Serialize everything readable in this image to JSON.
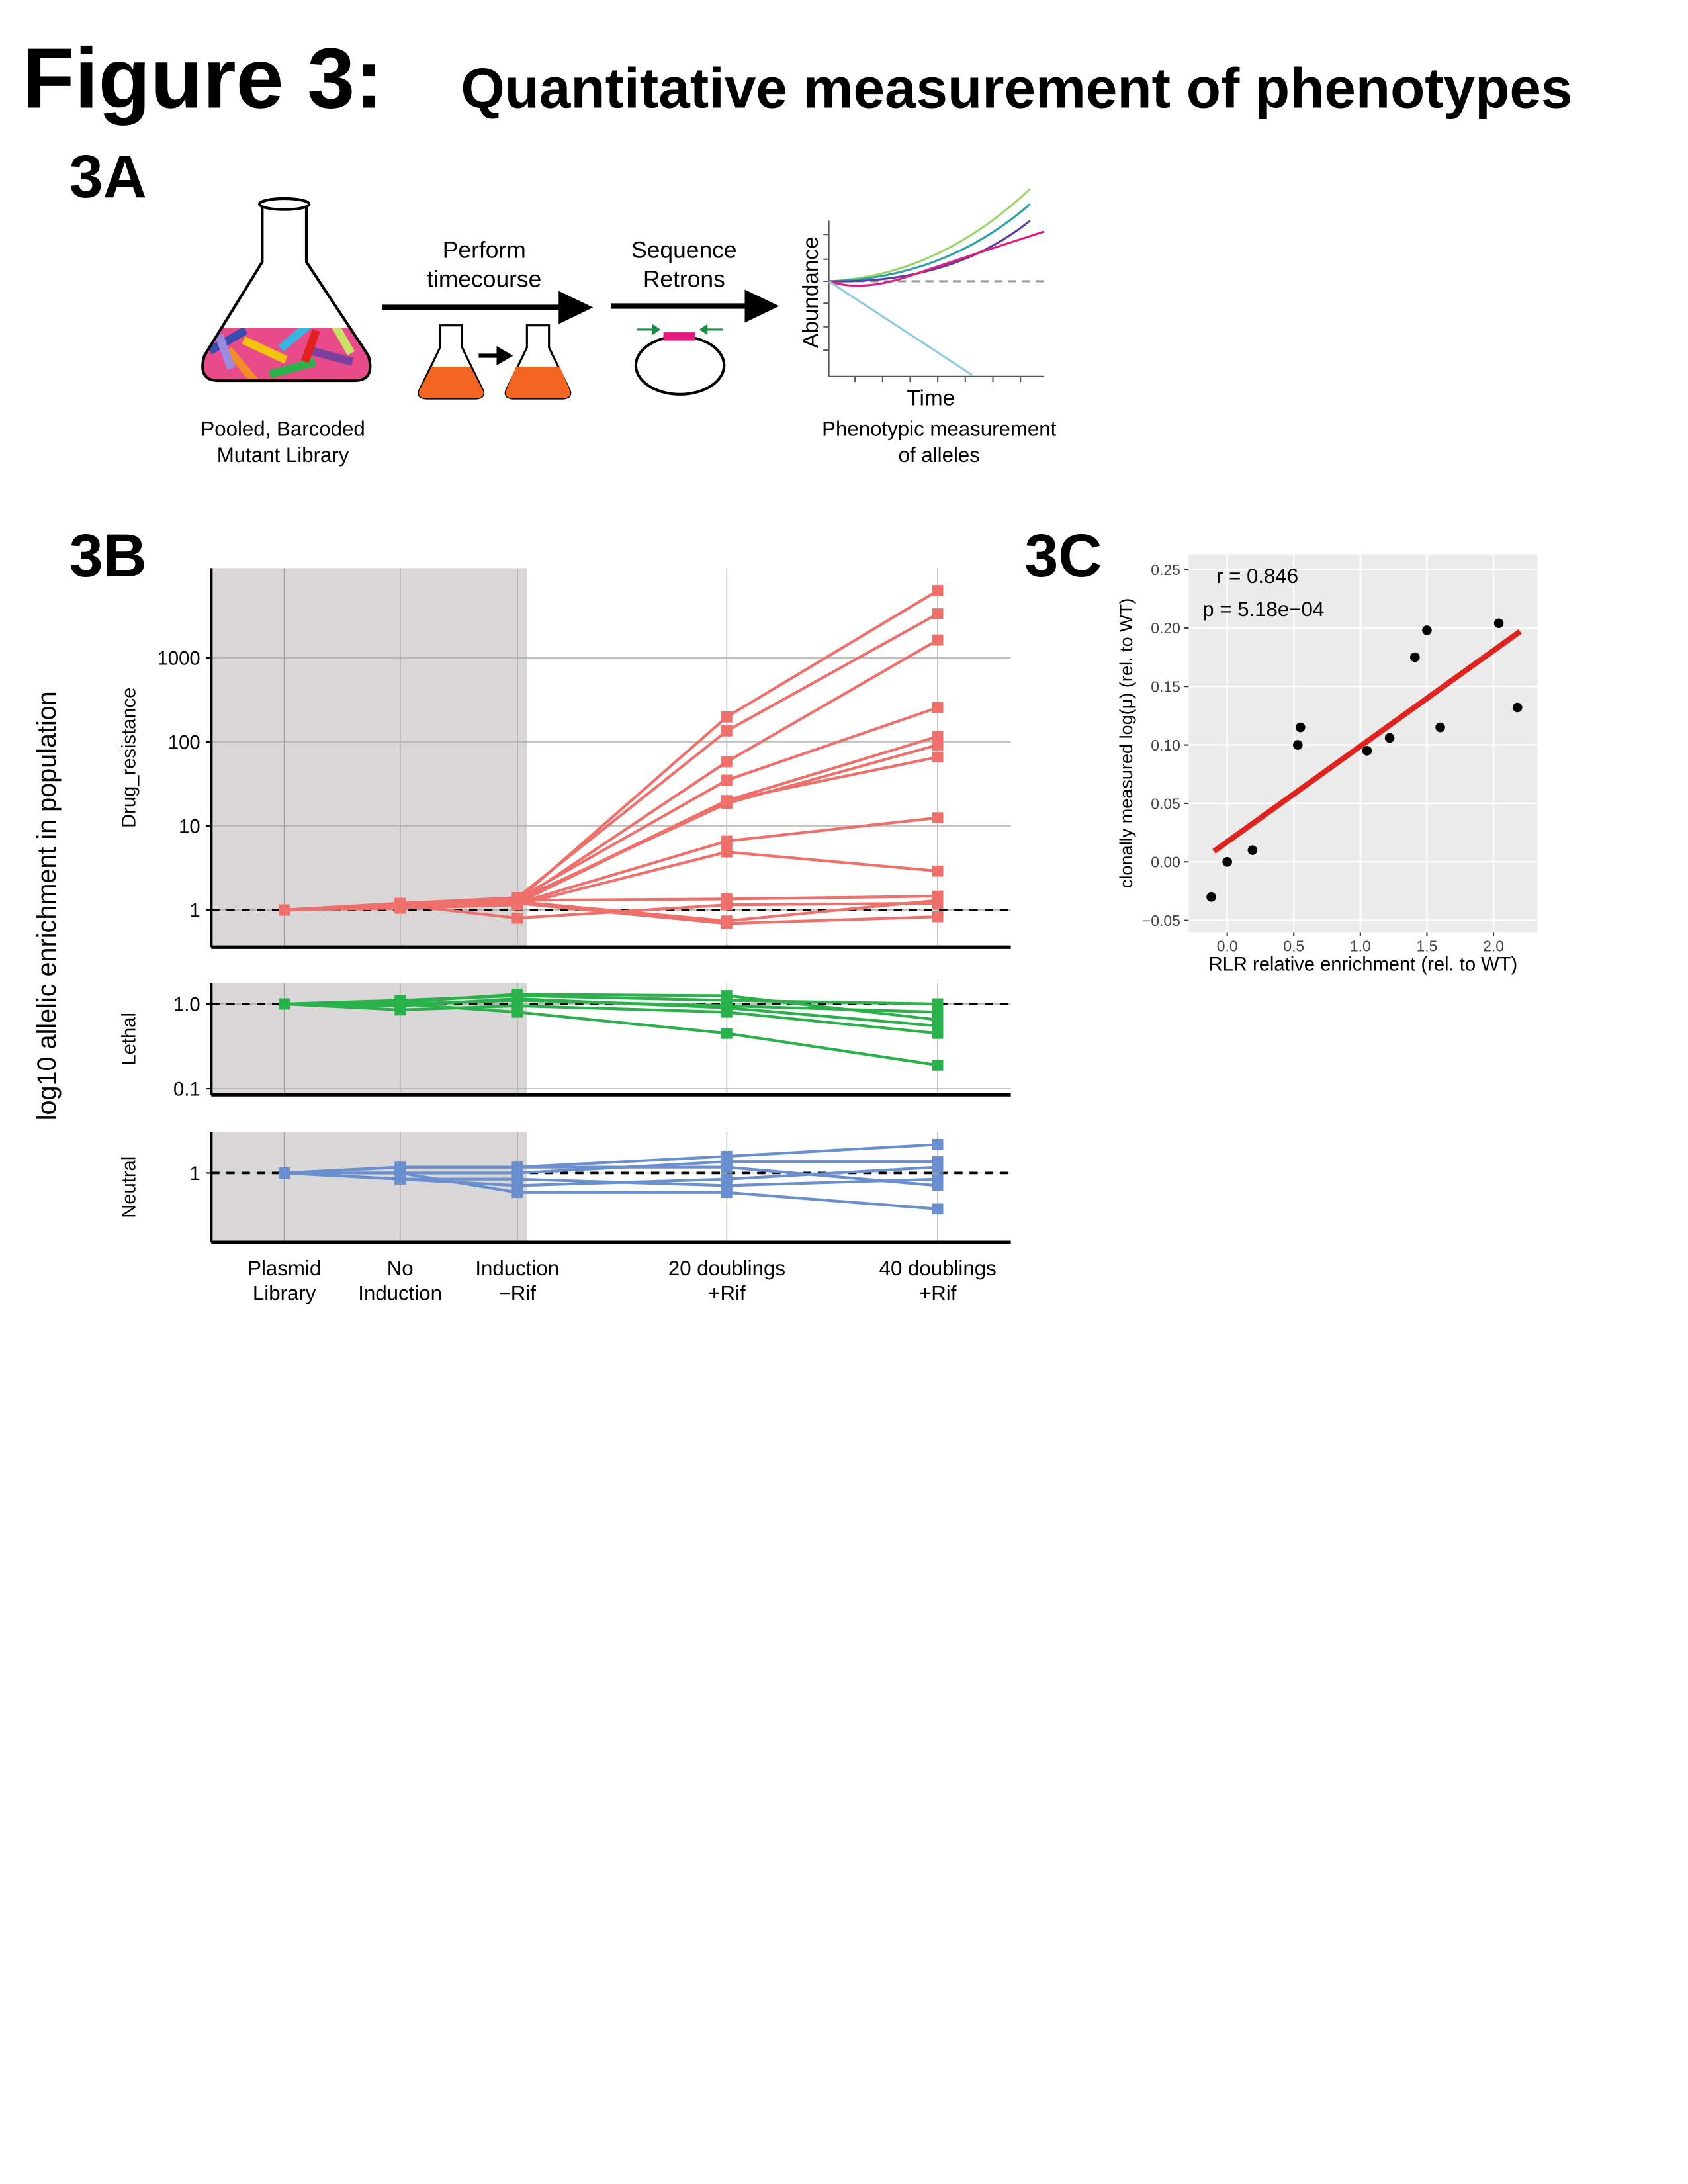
{
  "header": {
    "figure_label": "Figure 3:",
    "title": "Quantitative measurement of phenotypes"
  },
  "panel_a": {
    "label": "3A",
    "library_caption": [
      "Pooled, Barcoded",
      "Mutant Library"
    ],
    "step1": [
      "Perform",
      "timecourse"
    ],
    "step2": [
      "Sequence",
      "Retrons"
    ],
    "plot_y_label": "Abundance",
    "plot_x_label": "Time",
    "result_caption": [
      "Phenotypic measurement",
      "of alleles"
    ]
  },
  "panel_b": {
    "label": "3B",
    "y_label": "log10 allelic enrichment in population",
    "categories": [
      [
        "Plasmid",
        "Library"
      ],
      [
        "No",
        "Induction"
      ],
      [
        "Induction",
        "−Rif"
      ],
      [
        "20 doublings",
        "+Rif"
      ],
      [
        "40 doublings",
        "+Rif"
      ]
    ]
  },
  "panel_c": {
    "label": "3C"
  },
  "chart_data": [
    {
      "type": "line",
      "y_label": "Drug_resistance",
      "log_scale": true,
      "ylim": [
        0.36,
        11700
      ],
      "yticks": [
        1,
        10,
        100,
        1000
      ],
      "reference_line": 1,
      "color": "#ef6f6a",
      "grid": true,
      "series": [
        {
          "values": [
            1,
            1.15,
            1.3,
            198,
            6300
          ]
        },
        {
          "values": [
            1,
            1.2,
            1.4,
            135,
            3340
          ]
        },
        {
          "values": [
            1,
            1.1,
            1.25,
            58,
            1630
          ]
        },
        {
          "values": [
            1,
            1.15,
            1.35,
            35,
            256
          ]
        },
        {
          "values": [
            1,
            1.1,
            1.2,
            20,
            116
          ]
        },
        {
          "values": [
            1,
            1.2,
            1.3,
            18.5,
            92
          ]
        },
        {
          "values": [
            1,
            1.1,
            1.25,
            20,
            66
          ]
        },
        {
          "values": [
            1,
            1.1,
            1.2,
            6.6,
            12.5
          ]
        },
        {
          "values": [
            1,
            1.05,
            1.15,
            4.9,
            2.9
          ]
        },
        {
          "values": [
            1,
            1.1,
            1.3,
            1.35,
            1.46
          ]
        },
        {
          "values": [
            1,
            1.15,
            0.8,
            1.15,
            1.2
          ]
        },
        {
          "values": [
            1,
            1.1,
            1.2,
            0.69,
            0.83
          ]
        },
        {
          "values": [
            1,
            1.1,
            1.25,
            0.74,
            1.3
          ]
        }
      ]
    },
    {
      "type": "line",
      "y_label": "Lethal",
      "log_scale": true,
      "ylim": [
        0.085,
        1.76
      ],
      "yticks": [
        0.1,
        {
          "value": 1,
          "label": "1.0"
        }
      ],
      "reference_line": 1,
      "color": "#2ab24a",
      "grid": true,
      "series": [
        {
          "values": [
            1,
            1.05,
            1.3,
            1.25,
            0.65
          ]
        },
        {
          "values": [
            1,
            1.1,
            1.25,
            1.1,
            1.0
          ]
        },
        {
          "values": [
            1,
            0.95,
            1.15,
            0.9,
            0.55
          ]
        },
        {
          "values": [
            1,
            0.85,
            0.95,
            0.8,
            0.45
          ]
        },
        {
          "values": [
            1,
            1.0,
            0.8,
            0.45,
            0.19
          ]
        },
        {
          "values": [
            1,
            1.0,
            1.1,
            0.95,
            0.8
          ]
        }
      ]
    },
    {
      "type": "line",
      "y_label": "Neutral",
      "log_scale": true,
      "ylim": [
        0.56,
        1.41
      ],
      "yticks": [
        1
      ],
      "reference_line": 1,
      "color": "#6a8fd0",
      "grid": true,
      "series": [
        {
          "values": [
            1,
            1.05,
            1.05,
            1.15,
            1.27
          ]
        },
        {
          "values": [
            1,
            1.0,
            1.0,
            1.1,
            1.1
          ]
        },
        {
          "values": [
            1,
            0.95,
            0.9,
            0.95,
            1.05
          ]
        },
        {
          "values": [
            1,
            1.0,
            0.85,
            0.85,
            0.74
          ]
        },
        {
          "values": [
            1,
            1.05,
            1.05,
            1.05,
            0.9
          ]
        },
        {
          "values": [
            1,
            0.95,
            0.95,
            0.9,
            0.95
          ]
        }
      ]
    },
    {
      "type": "scatter",
      "x_label": "RLR relative enrichment (rel. to WT)",
      "y_label": "clonally measured log(μ) (rel. to WT)",
      "annotations": [
        "r = 0.846",
        "p = 5.18e−04"
      ],
      "grid": true,
      "color": "#000000",
      "xlim": [
        -0.29,
        2.33
      ],
      "ylim": [
        -0.06,
        0.263
      ],
      "xticks": [
        {
          "value": 0,
          "label": "0.0"
        },
        0.5,
        {
          "value": 1,
          "label": "1.0"
        },
        1.5,
        {
          "value": 2,
          "label": "2.0"
        }
      ],
      "yticks": [
        {
          "value": -0.05,
          "label": "−0.05"
        },
        {
          "value": 0,
          "label": "0.00"
        },
        0.05,
        {
          "value": 0.1,
          "label": "0.10"
        },
        0.15,
        {
          "value": 0.2,
          "label": "0.20"
        },
        0.25
      ],
      "x": [
        -0.12,
        0.0,
        0.19,
        0.53,
        0.55,
        1.05,
        1.22,
        1.41,
        1.5,
        1.6,
        2.04,
        2.18
      ],
      "values": [
        -0.03,
        0.0,
        0.01,
        0.1,
        0.115,
        0.095,
        0.106,
        0.175,
        0.198,
        0.115,
        0.204,
        0.132
      ],
      "fit": {
        "color": "#e0231f",
        "x": [
          -0.1,
          2.2
        ],
        "values": [
          0.009,
          0.197
        ]
      }
    }
  ]
}
